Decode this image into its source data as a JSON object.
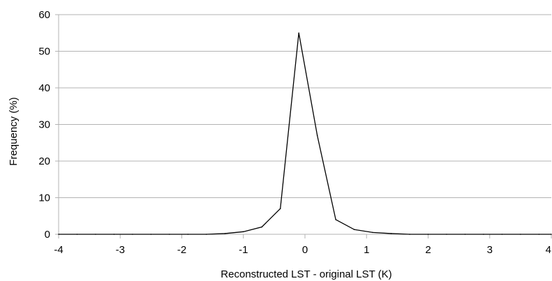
{
  "chart_data": {
    "type": "line",
    "title": "",
    "xlabel": "Reconstructed LST - original LST (K)",
    "ylabel": "Frequency (%)",
    "xlim": [
      -4,
      4
    ],
    "ylim": [
      0,
      60
    ],
    "x_ticks": [
      -4,
      -3,
      -2,
      -1,
      0,
      1,
      2,
      3,
      4
    ],
    "x_tick_labels": [
      "-4",
      "-3",
      "-2",
      "-1",
      "0",
      "1",
      "2",
      "3",
      "4"
    ],
    "y_ticks": [
      0,
      10,
      20,
      30,
      40,
      50,
      60
    ],
    "y_tick_labels": [
      "0",
      "10",
      "20",
      "30",
      "40",
      "50",
      "60"
    ],
    "grid": true,
    "legend": false,
    "series": [
      {
        "x": [
          -4,
          -3.7,
          -3.4,
          -3.1,
          -2.8,
          -2.5,
          -2.2,
          -1.9,
          -1.6,
          -1.3,
          -1.0,
          -0.7,
          -0.4,
          -0.1,
          0.2,
          0.5,
          0.8,
          1.1,
          1.4,
          1.7,
          2.0,
          2.3,
          2.6,
          2.9,
          3.2,
          3.5,
          3.8,
          4.0
        ],
        "values": [
          0,
          0,
          0,
          0,
          0,
          0,
          0,
          0,
          0,
          0.2,
          0.7,
          2.0,
          7.0,
          55.0,
          27.0,
          4.0,
          1.3,
          0.5,
          0.2,
          0,
          0,
          0,
          0,
          0,
          0,
          0,
          0,
          0
        ],
        "color": "#000000"
      }
    ]
  }
}
